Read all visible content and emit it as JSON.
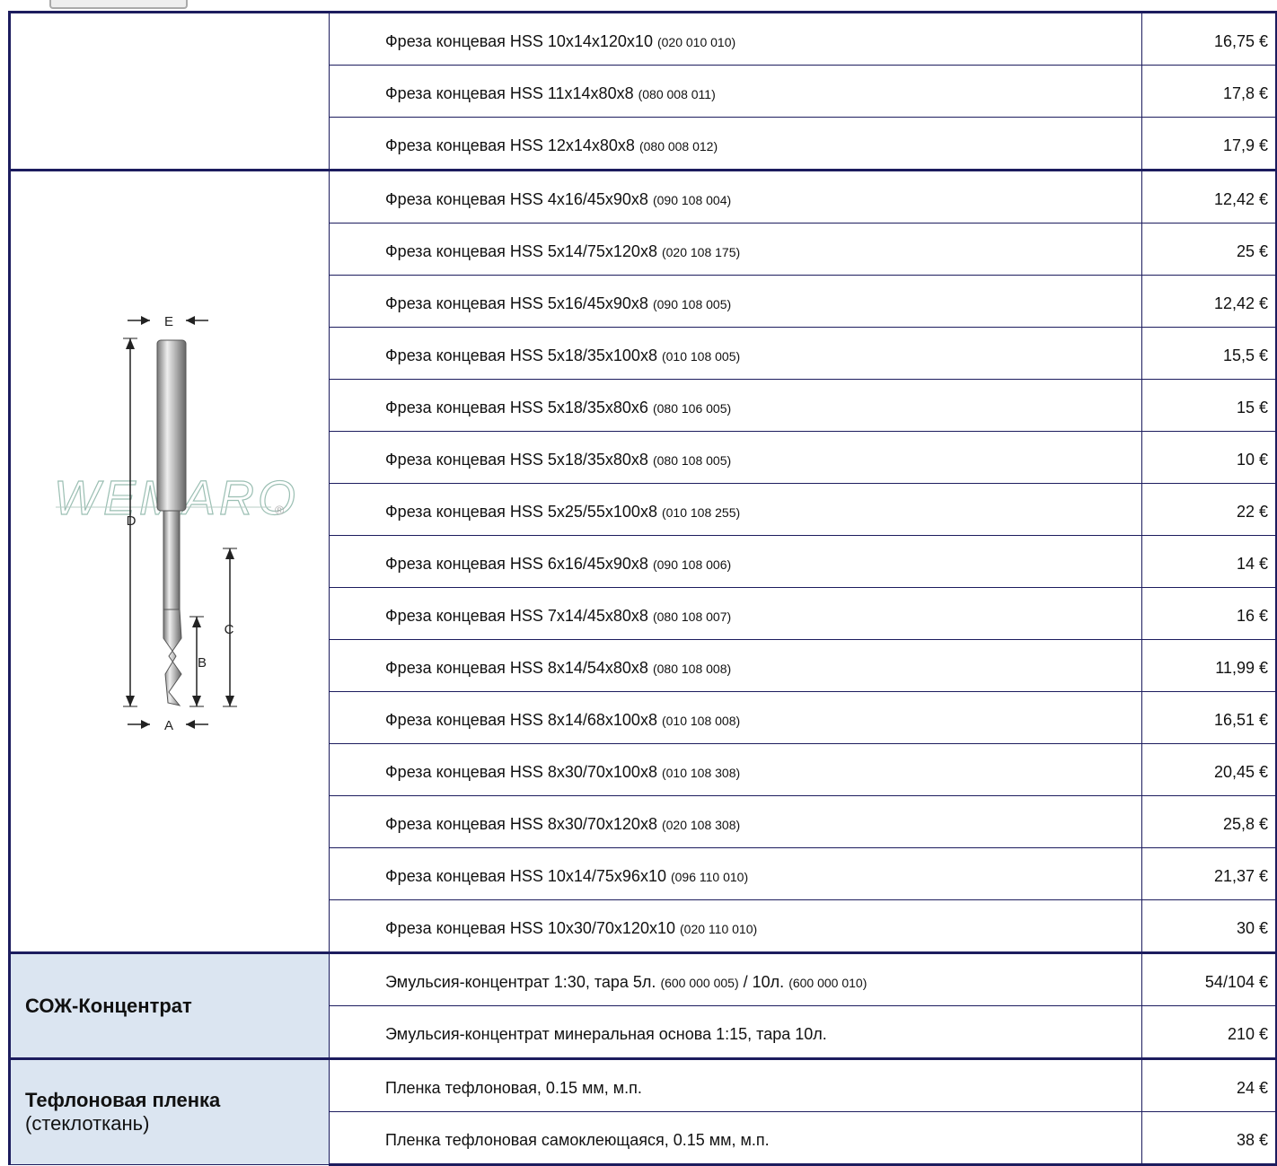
{
  "groups": [
    {
      "items": [
        {
          "name": "Фреза концевая HSS  10x14x120x10",
          "code": "(020 010 010)",
          "price": "16,75 €"
        },
        {
          "name": "Фреза концевая HSS  11x14x80x8",
          "code": "(080 008 011)",
          "price": "17,8 €"
        },
        {
          "name": "Фреза концевая HSS  12x14x80x8",
          "code": "(080 008 012)",
          "price": "17,9 €"
        }
      ]
    },
    {
      "image": {
        "watermark": "WEMARO",
        "mark": "®",
        "dims": [
          "A",
          "B",
          "C",
          "D",
          "E"
        ]
      },
      "items": [
        {
          "name": "Фреза концевая HSS  4x16/45x90x8",
          "code": "(090 108 004)",
          "price": "12,42 €"
        },
        {
          "name": "Фреза концевая HSS  5x14/75x120x8",
          "code": "(020 108 175)",
          "price": "25 €"
        },
        {
          "name": "Фреза концевая HSS  5x16/45x90x8",
          "code": "(090 108 005)",
          "price": "12,42 €"
        },
        {
          "name": "Фреза концевая HSS  5x18/35x100x8",
          "code": "(010 108 005)",
          "price": "15,5 €"
        },
        {
          "name": "Фреза концевая HSS  5x18/35x80x6",
          "code": "(080 106 005)",
          "price": "15 €"
        },
        {
          "name": "Фреза концевая HSS  5x18/35x80x8",
          "code": "(080 108 005)",
          "price": "10 €"
        },
        {
          "name": "Фреза концевая HSS  5x25/55x100x8",
          "code": "(010 108 255)",
          "price": "22 €"
        },
        {
          "name": "Фреза концевая HSS  6x16/45x90x8",
          "code": "(090 108 006)",
          "price": "14 €"
        },
        {
          "name": "Фреза концевая HSS  7x14/45x80x8",
          "code": "(080 108 007)",
          "price": "16 €"
        },
        {
          "name": "Фреза концевая HSS  8x14/54x80x8",
          "code": "(080 108 008)",
          "price": "11,99 €"
        },
        {
          "name": "Фреза концевая HSS  8x14/68x100x8",
          "code": "(010 108 008)",
          "price": "16,51 €"
        },
        {
          "name": "Фреза концевая HSS  8x30/70x100x8",
          "code": "(010 108 308)",
          "price": "20,45 €"
        },
        {
          "name": "Фреза концевая HSS  8x30/70x120x8",
          "code": "(020 108 308)",
          "price": "25,8 €"
        },
        {
          "name": "Фреза концевая HSS  10x14/75x96x10",
          "code": "(096 110 010)",
          "price": "21,37 €"
        },
        {
          "name": "Фреза концевая HSS  10x30/70x120x10",
          "code": "(020 110 010)",
          "price": "30 €"
        }
      ]
    },
    {
      "label": "СОЖ-Концентрат",
      "items": [
        {
          "name": "Эмульсия-концентрат  1:30, тара  5л.",
          "code": "(600 000 005)",
          "name2": "/ 10л.",
          "code2": "(600 000 010)",
          "price": "54/104 €"
        },
        {
          "name": "Эмульсия-концентрат минеральная основа 1:15, тара  10л.",
          "price": "210 €"
        }
      ]
    },
    {
      "label": "Тефлоновая  пленка",
      "sublabel": "(стеклоткань)",
      "items": [
        {
          "name": "Пленка тефлоновая, 0.15 мм,  м.п.",
          "price": "24 €"
        },
        {
          "name": "Пленка тефлоновая самоклеющаяся, 0.15 мм,   м.п.",
          "price": "38 €"
        }
      ]
    }
  ]
}
